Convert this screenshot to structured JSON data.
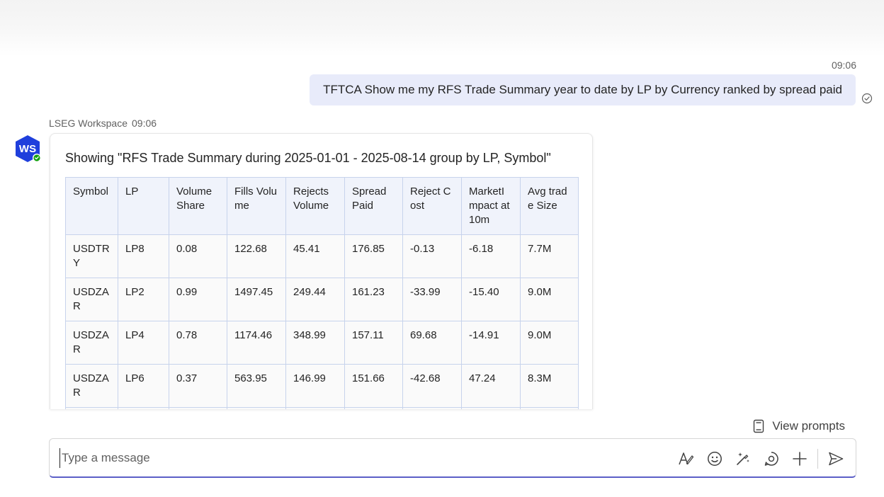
{
  "outgoing": {
    "time": "09:06",
    "text": "TFTCA Show me my RFS Trade Summary year to date by LP by Currency ranked by spread paid"
  },
  "incoming": {
    "sender": "LSEG Workspace",
    "time": "09:06",
    "avatar_initials": "WS",
    "title": "Showing \"RFS Trade Summary during 2025-01-01 - 2025-08-14 group by LP, Symbol\"",
    "table": {
      "headers": [
        "Symbol",
        "LP",
        "Volume Share",
        "Fills Volume",
        "Rejects Volume",
        "Spread Paid",
        "Reject Cost",
        "MarketImpact at 10m",
        "Avg trade Size"
      ],
      "rows": [
        [
          "USDTRY",
          "LP8",
          "0.08",
          "122.68",
          "45.41",
          "176.85",
          "-0.13",
          "-6.18",
          "7.7M"
        ],
        [
          "USDZAR",
          "LP2",
          "0.99",
          "1497.45",
          "249.44",
          "161.23",
          "-33.99",
          "-15.40",
          "9.0M"
        ],
        [
          "USDZAR",
          "LP4",
          "0.78",
          "1174.46",
          "348.99",
          "157.11",
          "69.68",
          "-14.91",
          "9.0M"
        ],
        [
          "USDZAR",
          "LP6",
          "0.37",
          "563.95",
          "146.99",
          "151.66",
          "-42.68",
          "47.24",
          "8.3M"
        ]
      ]
    }
  },
  "view_prompts_label": "View prompts",
  "composer": {
    "placeholder": "Type a message"
  },
  "colors": {
    "accent": "#5b5fc7",
    "outgoing_bubble": "#e8ebfa",
    "avatar": "#1f3fdc",
    "presence": "#13a10e"
  },
  "icons": [
    "read-receipt-icon",
    "presence-available-icon",
    "view-prompts-icon",
    "format-icon",
    "emoji-icon",
    "copilot-icon",
    "loop-icon",
    "add-icon",
    "send-icon"
  ]
}
